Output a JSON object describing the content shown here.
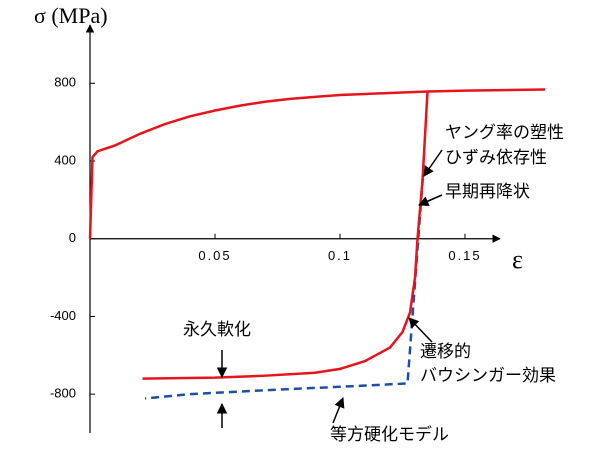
{
  "chart_data": {
    "type": "line",
    "ylabel": "σ (MPa)",
    "xlabel": "ε",
    "xlim": [
      0,
      0.164
    ],
    "ylim": [
      -1000,
      1100
    ],
    "xticks": [
      0.05,
      0.1,
      0.15
    ],
    "yticks": [
      800,
      400,
      0,
      -400,
      -800
    ],
    "series": [
      {
        "color": "#e8141c",
        "linestyle": "solid",
        "x": [
          0,
          0.001,
          0.003,
          0.01,
          0.02,
          0.03,
          0.04,
          0.05,
          0.06,
          0.07,
          0.08,
          0.09,
          0.1,
          0.11,
          0.12,
          0.135,
          0.15,
          0.165,
          0.182
        ],
        "values": [
          0,
          420,
          450,
          480,
          540,
          590,
          630,
          660,
          685,
          705,
          720,
          730,
          740,
          745,
          750,
          758,
          762,
          765,
          768
        ]
      },
      {
        "color": "#e8141c",
        "linestyle": "solid",
        "x": [
          0.135,
          0.133,
          0.131,
          0.13,
          0.128,
          0.125,
          0.12,
          0.11,
          0.1,
          0.09,
          0.07,
          0.05,
          0.021
        ],
        "values": [
          758,
          300,
          0,
          -200,
          -380,
          -480,
          -560,
          -630,
          -670,
          -690,
          -705,
          -715,
          -720
        ]
      },
      {
        "color": "#1f4fa3",
        "linestyle": "dashed",
        "x": [
          0.1335,
          0.127,
          0.1,
          0.07,
          0.04,
          0.022
        ],
        "values": [
          380,
          -745,
          -762,
          -780,
          -800,
          -822
        ]
      }
    ],
    "annotations": [
      {
        "text": "ヤング率の塑性"
      },
      {
        "text": "ひずみ依存性"
      },
      {
        "text": "早期再降状"
      },
      {
        "text": "遷移的"
      },
      {
        "text": "バウシンガー効果"
      },
      {
        "text": "永久軟化"
      },
      {
        "text": "等方硬化モデル"
      }
    ]
  }
}
